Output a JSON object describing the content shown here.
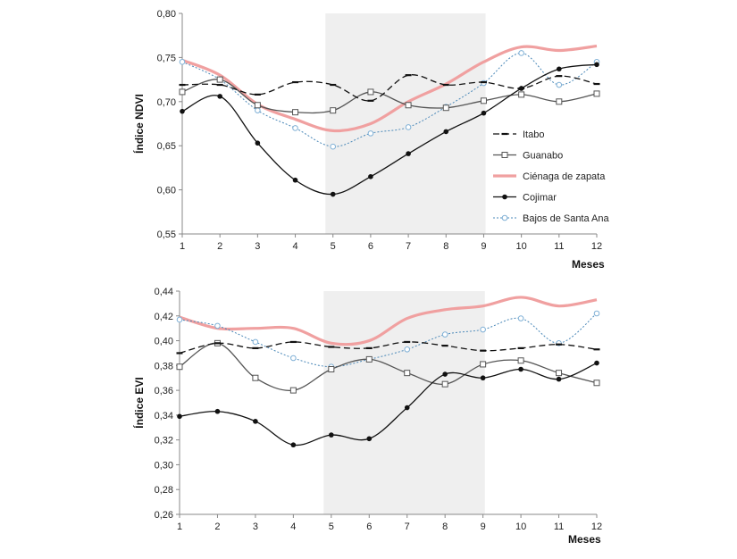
{
  "chart_data": [
    {
      "type": "line",
      "ylabel": "Índice NDVI",
      "xlabel": "Meses",
      "x": [
        1,
        2,
        3,
        4,
        5,
        6,
        7,
        8,
        9,
        10,
        11,
        12
      ],
      "x_tick_labels": [
        "1",
        "2",
        "3",
        "4",
        "5",
        "6",
        "7",
        "8",
        "9",
        "10",
        "11",
        "12"
      ],
      "ylim": [
        0.55,
        0.8
      ],
      "y_tick_labels": [
        "0,55",
        "0,60",
        "0,65",
        "0,70",
        "0,75",
        "0,80"
      ],
      "y_ticks": [
        0.55,
        0.6,
        0.65,
        0.7,
        0.75,
        0.8
      ],
      "highlight_x_range": [
        4.8,
        9.05
      ],
      "legend_position": "right",
      "series": [
        {
          "name": "Itabo",
          "values": [
            0.719,
            0.719,
            0.708,
            0.722,
            0.719,
            0.701,
            0.73,
            0.719,
            0.722,
            0.715,
            0.729,
            0.72
          ]
        },
        {
          "name": "Guanabo",
          "values": [
            0.711,
            0.725,
            0.696,
            0.688,
            0.69,
            0.711,
            0.696,
            0.693,
            0.701,
            0.708,
            0.7,
            0.709
          ]
        },
        {
          "name": "Ciénaga de zapata",
          "values": [
            0.747,
            0.73,
            0.697,
            0.68,
            0.667,
            0.675,
            0.7,
            0.72,
            0.745,
            0.762,
            0.758,
            0.763
          ]
        },
        {
          "name": "Cojimar",
          "values": [
            0.689,
            0.706,
            0.653,
            0.611,
            0.595,
            0.615,
            0.641,
            0.666,
            0.687,
            0.715,
            0.737,
            0.742
          ]
        },
        {
          "name": "Bajos de Santa Ana",
          "values": [
            0.745,
            0.725,
            0.69,
            0.67,
            0.649,
            0.664,
            0.671,
            0.694,
            0.721,
            0.755,
            0.719,
            0.745
          ]
        }
      ]
    },
    {
      "type": "line",
      "ylabel": "Índice EVI",
      "xlabel": "Meses",
      "x": [
        1,
        2,
        3,
        4,
        5,
        6,
        7,
        8,
        9,
        10,
        11,
        12
      ],
      "x_tick_labels": [
        "1",
        "2",
        "3",
        "4",
        "5",
        "6",
        "7",
        "8",
        "9",
        "10",
        "11",
        "12"
      ],
      "ylim": [
        0.26,
        0.44
      ],
      "y_tick_labels": [
        "0,26",
        "0,28",
        "0,30",
        "0,32",
        "0,34",
        "0,36",
        "0,38",
        "0,40",
        "0,42",
        "0,44"
      ],
      "y_ticks": [
        0.26,
        0.28,
        0.3,
        0.32,
        0.34,
        0.36,
        0.38,
        0.4,
        0.42,
        0.44
      ],
      "highlight_x_range": [
        4.8,
        9.05
      ],
      "series": [
        {
          "name": "Itabo",
          "values": [
            0.39,
            0.398,
            0.394,
            0.399,
            0.395,
            0.394,
            0.399,
            0.396,
            0.392,
            0.394,
            0.397,
            0.393
          ]
        },
        {
          "name": "Guanabo",
          "values": [
            0.379,
            0.398,
            0.37,
            0.36,
            0.377,
            0.385,
            0.374,
            0.365,
            0.381,
            0.384,
            0.374,
            0.366
          ]
        },
        {
          "name": "Ciénaga de zapata",
          "values": [
            0.419,
            0.41,
            0.41,
            0.41,
            0.398,
            0.4,
            0.418,
            0.425,
            0.428,
            0.435,
            0.428,
            0.433
          ]
        },
        {
          "name": "Cojimar",
          "values": [
            0.339,
            0.343,
            0.335,
            0.316,
            0.324,
            0.321,
            0.346,
            0.373,
            0.37,
            0.377,
            0.369,
            0.382
          ]
        },
        {
          "name": "Bajos de Santa Ana",
          "values": [
            0.417,
            0.412,
            0.399,
            0.386,
            0.379,
            0.385,
            0.393,
            0.405,
            0.409,
            0.418,
            0.398,
            0.422
          ]
        }
      ]
    }
  ],
  "series_styles": {
    "Itabo": {
      "color": "#111111",
      "dash": "dashed",
      "marker": "dash"
    },
    "Guanabo": {
      "color": "#555555",
      "dash": "solid",
      "marker": "open-square"
    },
    "Ciénaga de zapata": {
      "color": "#f0a0a0",
      "dash": "solid",
      "marker": "none"
    },
    "Cojimar": {
      "color": "#111111",
      "dash": "solid",
      "marker": "filled-circle"
    },
    "Bajos de Santa Ana": {
      "color": "#4a88b8",
      "dash": "dotted",
      "marker": "open-circle"
    }
  },
  "colors": {
    "highlight": "#efefef",
    "axis": "#888888"
  }
}
